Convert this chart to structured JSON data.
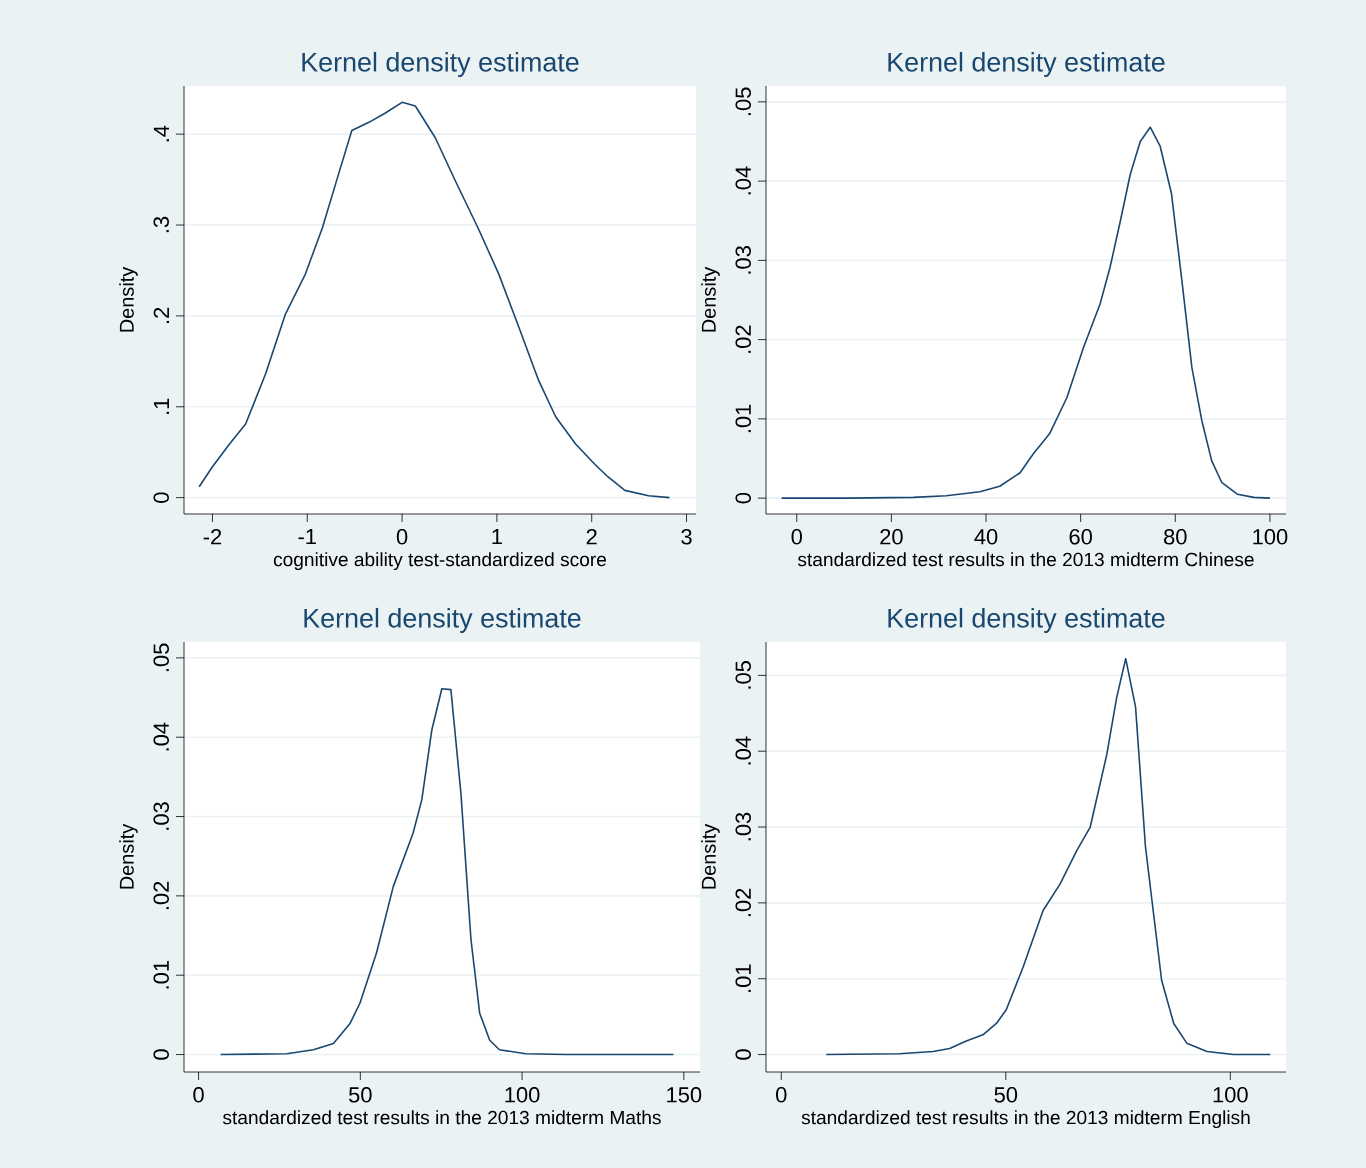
{
  "chart_data": [
    {
      "type": "line",
      "title": "Kernel density estimate",
      "xlabel": "cognitive ability test-standardized score",
      "ylabel": "Density",
      "color": "#1a476f",
      "grid": "y",
      "xlim": [
        -2.3,
        3.1
      ],
      "ylim": [
        -0.018,
        0.453
      ],
      "xticks": [
        -2,
        -1,
        0,
        1,
        2,
        3
      ],
      "yticks": [
        0,
        {
          "value": 0.1,
          "label": ".1"
        },
        {
          "value": 0.2,
          "label": ".2"
        },
        {
          "value": 0.3,
          "label": ".3"
        },
        {
          "value": 0.4,
          "label": ".4"
        }
      ],
      "x": [
        -2.14,
        -2.0,
        -1.82,
        -1.65,
        -1.44,
        -1.23,
        -1.02,
        -0.84,
        -0.67,
        -0.53,
        -0.35,
        -0.18,
        0.0,
        0.14,
        0.35,
        0.56,
        0.8,
        1.02,
        1.23,
        1.44,
        1.62,
        1.83,
        2.03,
        2.17,
        2.35,
        2.6,
        2.82
      ],
      "values": [
        0.012,
        0.034,
        0.059,
        0.081,
        0.136,
        0.202,
        0.246,
        0.297,
        0.356,
        0.404,
        0.413,
        0.423,
        0.435,
        0.431,
        0.396,
        0.349,
        0.297,
        0.246,
        0.188,
        0.129,
        0.089,
        0.059,
        0.037,
        0.023,
        0.008,
        0.002,
        0.0
      ]
    },
    {
      "type": "line",
      "title": "Kernel density estimate",
      "xlabel": "standardized test results in the 2013 midterm Chinese",
      "ylabel": "Density",
      "color": "#1a476f",
      "grid": "y",
      "xlim": [
        -6.5,
        103.4
      ],
      "ylim": [
        -0.002,
        0.052
      ],
      "xticks": [
        0,
        20,
        40,
        60,
        80,
        100
      ],
      "yticks": [
        0,
        {
          "value": 0.01,
          "label": ".01"
        },
        {
          "value": 0.02,
          "label": ".02"
        },
        {
          "value": 0.03,
          "label": ".03"
        },
        {
          "value": 0.04,
          "label": ".04"
        },
        {
          "value": 0.05,
          "label": ".05"
        }
      ],
      "x": [
        -3.2,
        10.5,
        24.6,
        31.6,
        38.7,
        42.9,
        47.2,
        50,
        53.5,
        57.1,
        60.6,
        64.1,
        66.2,
        68.4,
        70.5,
        72.6,
        74.7,
        76.8,
        79.2,
        81.4,
        83.5,
        85.6,
        87.7,
        89.8,
        93.1,
        96.6,
        100
      ],
      "values": [
        0,
        0,
        0.0001,
        0.0003,
        0.0008,
        0.0015,
        0.0032,
        0.0056,
        0.0082,
        0.0127,
        0.019,
        0.0245,
        0.0291,
        0.035,
        0.0409,
        0.045,
        0.0468,
        0.0444,
        0.0384,
        0.0274,
        0.0165,
        0.0098,
        0.0047,
        0.002,
        0.0005,
        0.0001,
        0
      ]
    },
    {
      "type": "line",
      "title": "Kernel density estimate",
      "xlabel": "standardized test results in the 2013 midterm Maths",
      "ylabel": "Density",
      "color": "#1a476f",
      "grid": "y",
      "xlim": [
        -4.5,
        155
      ],
      "ylim": [
        -0.0022,
        0.052
      ],
      "xticks": [
        0,
        50,
        100,
        150
      ],
      "yticks": [
        0,
        {
          "value": 0.01,
          "label": ".01"
        },
        {
          "value": 0.02,
          "label": ".02"
        },
        {
          "value": 0.03,
          "label": ".03"
        },
        {
          "value": 0.04,
          "label": ".04"
        },
        {
          "value": 0.05,
          "label": ".05"
        }
      ],
      "x": [
        6.8,
        27.3,
        35.5,
        41.7,
        46.8,
        49.9,
        55,
        60.2,
        66.3,
        69,
        72.1,
        75.2,
        78,
        81.1,
        84.2,
        86.9,
        90,
        93,
        101.2,
        113.6,
        146.8
      ],
      "values": [
        0,
        0.0001,
        0.0006,
        0.0014,
        0.0039,
        0.0065,
        0.0128,
        0.0212,
        0.0279,
        0.0321,
        0.0409,
        0.0461,
        0.046,
        0.0329,
        0.0145,
        0.0052,
        0.0018,
        0.0006,
        0.0001,
        0,
        0
      ]
    },
    {
      "type": "line",
      "title": "Kernel density estimate",
      "xlabel": "standardized test results in the 2013 midterm English",
      "ylabel": "Density",
      "color": "#1a476f",
      "grid": "y",
      "xlim": [
        -3.4,
        112.4
      ],
      "ylim": [
        -0.0023,
        0.0544
      ],
      "xticks": [
        0,
        50,
        100
      ],
      "yticks": [
        0,
        {
          "value": 0.01,
          "label": ".01"
        },
        {
          "value": 0.02,
          "label": ".02"
        },
        {
          "value": 0.03,
          "label": ".03"
        },
        {
          "value": 0.04,
          "label": ".04"
        },
        {
          "value": 0.05,
          "label": ".05"
        }
      ],
      "x": [
        10,
        26.3,
        33.8,
        37.5,
        41.2,
        44.9,
        47.9,
        50.1,
        53.9,
        58.3,
        62.1,
        65.8,
        68.8,
        72.5,
        74.7,
        76.7,
        78.9,
        81.1,
        84.7,
        87.4,
        90.3,
        94.8,
        100.7,
        108.9
      ],
      "values": [
        0,
        0.0001,
        0.0004,
        0.0008,
        0.0018,
        0.0026,
        0.0041,
        0.0059,
        0.0116,
        0.019,
        0.0225,
        0.0269,
        0.03,
        0.0396,
        0.0471,
        0.0522,
        0.0458,
        0.0274,
        0.0098,
        0.0041,
        0.0015,
        0.0004,
        0,
        0
      ]
    }
  ]
}
